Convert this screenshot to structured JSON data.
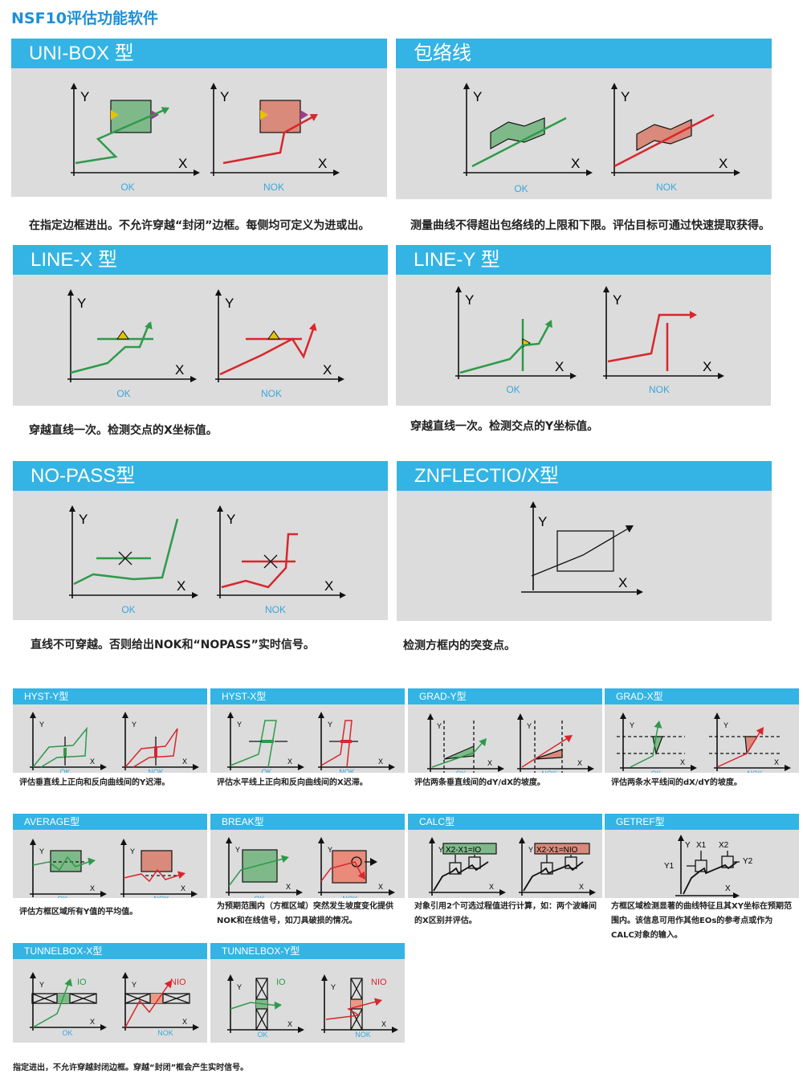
{
  "title": "NSF10评估功能软件",
  "axis": {
    "x": "X",
    "y": "Y",
    "ok": "OK",
    "nok": "NOK"
  },
  "colors": {
    "header": "#33b4e4",
    "ok": "#2e9a4a",
    "nok": "#d9262c",
    "label": "#3aa6dd"
  },
  "big": [
    {
      "title": "UNI-BOX 型",
      "caption": "在指定边框进出。不允许穿越“封闭”边框。每侧均可定义为进或出。"
    },
    {
      "title": "包络线",
      "caption": "测量曲线不得超出包络线的上限和下限。评估目标可通过快速提取获得。"
    },
    {
      "title": "LINE-X 型",
      "caption": "穿越直线一次。检测交点的X坐标值。"
    },
    {
      "title": "LINE-Y 型",
      "caption": "穿越直线一次。检测交点的Y坐标值。"
    },
    {
      "title": "NO-PASS型",
      "caption": "直线不可穿越。否则给出NOK和“NOPASS”实时信号。"
    },
    {
      "title": "ZNFLECTIO/X型",
      "caption": "检测方框内的突变点。"
    }
  ],
  "small": [
    {
      "title": "HYST-Y型",
      "caption": "评估垂直线上正向和反向曲线间的Y迟滞。"
    },
    {
      "title": "HYST-X型",
      "caption": "评估水平线上正向和反向曲线间的X迟滞。"
    },
    {
      "title": "GRAD-Y型",
      "caption": "评估两条垂直线间的dY/dX的坡度。"
    },
    {
      "title": "GRAD-X型",
      "caption": "评估两条水平线间的dX/dY的坡度。"
    },
    {
      "title": "AVERAGE型",
      "caption": "评估方框区域所有Y值的平均值。"
    },
    {
      "title": "BREAK型",
      "caption": "为预期范围内（方框区域）突然发生坡度变化提供NOK和在线信号，如刀具破损的情况。"
    },
    {
      "title": "CALC型",
      "caption": "对象引用2个可选过程值进行计算，如：两个波峰间的X区别并评估。",
      "ok_formula": "X2-X1=IO",
      "nok_formula": "X2-X1=NIO",
      "x1": "X1",
      "x2": "X2"
    },
    {
      "title": "GETREF型",
      "caption": "方框区域检测显著的曲线特征且其XY坐标在预期范围内。该信息可用作其他EOs的参考点或作为CALC对象的输入。",
      "x1": "X1",
      "x2": "X2",
      "y1": "Y1",
      "y2": "Y2"
    },
    {
      "title": "TUNNELBOX-X型",
      "io": "IO",
      "nio": "NIO"
    },
    {
      "title": "TUNNELBOX-Y型",
      "io": "IO",
      "nio": "NIO"
    }
  ],
  "footer": "指定进出，不允许穿越封闭边框。穿越“封闭”框会产生实时信号。"
}
